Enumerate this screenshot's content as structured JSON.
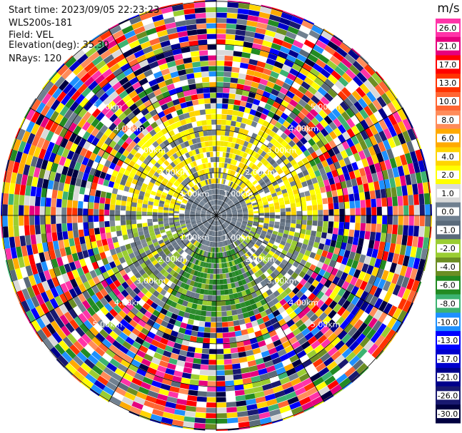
{
  "meta": {
    "start_time": "Start time: 2023/09/05 22:23:23",
    "instrument": "WLS200s-181",
    "field": "Field: VEL",
    "elevation": "Elevation(deg): 35.30",
    "nrays": "NRays: 120"
  },
  "ring_labels": {
    "r1": "1.00km",
    "r2": "2.00km",
    "r3": "3.00km",
    "r4": "4.00km",
    "r5": "5.00km"
  },
  "colorbar": {
    "unit": "m/s",
    "ticks": [
      "26.0",
      "21.0",
      "17.0",
      "13.0",
      "10.0",
      "8.0",
      "6.0",
      "4.0",
      "2.0",
      "1.0",
      "0.0",
      "-1.0",
      "-2.0",
      "-4.0",
      "-6.0",
      "-8.0",
      "-10.0",
      "-13.0",
      "-17.0",
      "-21.0",
      "-26.0",
      "-30.0"
    ],
    "colors": [
      "#ff33a8",
      "#e6007e",
      "#ff0000",
      "#ff3300",
      "#ff6633",
      "#ff8c5a",
      "#ffaa00",
      "#ffd500",
      "#ffff00",
      "#d9d9d9",
      "#708090",
      "#5a6a7a",
      "#9acd32",
      "#6b8e23",
      "#228b22",
      "#3cb371",
      "#1e90ff",
      "#0000ff",
      "#0000cd",
      "#00008b",
      "#191970",
      "#000040"
    ]
  }
}
